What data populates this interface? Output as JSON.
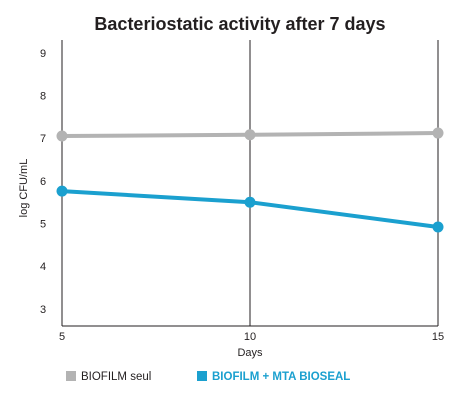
{
  "chart_data": {
    "type": "line",
    "title": "Bacteriostatic activity after 7 days",
    "xlabel": "Days",
    "ylabel": "log CFU/mL",
    "x": [
      5,
      10,
      15
    ],
    "xlim": [
      5,
      15
    ],
    "ylim": [
      2.6,
      9.3
    ],
    "yticks": [
      3,
      4,
      5,
      6,
      7,
      8,
      9
    ],
    "xticks": [
      5,
      10,
      15
    ],
    "grid": "vertical",
    "legend_position": "bottom",
    "series": [
      {
        "name": "BIOFILM seul",
        "values": [
          7.05,
          7.08,
          7.12
        ],
        "color": "#b3b3b3"
      },
      {
        "name": "BIOFILM + MTA BIOSEAL",
        "values": [
          5.76,
          5.5,
          4.92
        ],
        "color": "#1ba0cf"
      }
    ]
  }
}
